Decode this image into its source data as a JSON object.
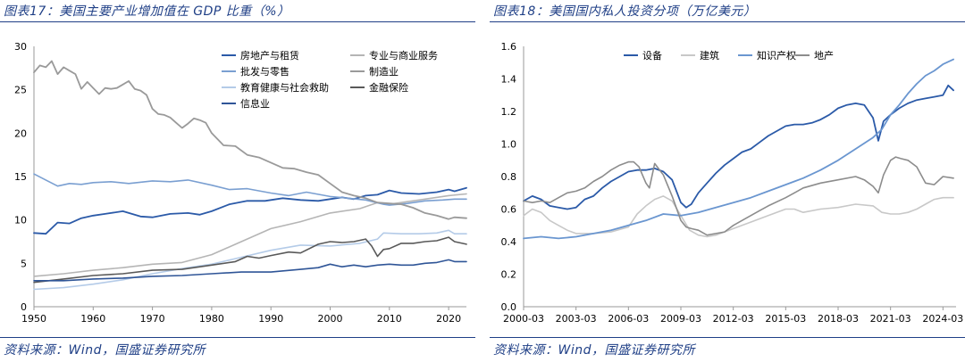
{
  "left": {
    "title": "图表17：美国主要产业增加值在 GDP 比重（%）",
    "source": "资料来源：Wind，国盛证券研究所",
    "chart_data": {
      "type": "line",
      "xlim": [
        1950,
        2023
      ],
      "ylim": [
        0,
        30
      ],
      "xticks": [
        1950,
        1960,
        1970,
        1980,
        1990,
        2000,
        2010,
        2020
      ],
      "yticks": [
        0,
        5,
        10,
        15,
        20,
        25,
        30
      ],
      "grid": false,
      "legend_position": "top-right",
      "series": [
        {
          "name": "房地产与租赁",
          "color": "#2b5aa8",
          "width": 1.8,
          "x": [
            1950,
            1952,
            1954,
            1956,
            1958,
            1960,
            1962,
            1965,
            1968,
            1970,
            1973,
            1976,
            1978,
            1980,
            1983,
            1986,
            1989,
            1992,
            1995,
            1998,
            2000,
            2002,
            2004,
            2006,
            2008,
            2010,
            2012,
            2015,
            2018,
            2020,
            2021,
            2023
          ],
          "y": [
            8.5,
            8.4,
            9.7,
            9.6,
            10.2,
            10.5,
            10.7,
            11.0,
            10.4,
            10.3,
            10.7,
            10.8,
            10.6,
            11.0,
            11.8,
            12.2,
            12.2,
            12.5,
            12.3,
            12.2,
            12.4,
            12.6,
            12.4,
            12.8,
            12.9,
            13.4,
            13.1,
            13.0,
            13.2,
            13.5,
            13.3,
            13.7
          ]
        },
        {
          "name": "专业与商业服务",
          "color": "#b5b5b5",
          "width": 1.6,
          "x": [
            1950,
            1955,
            1960,
            1965,
            1970,
            1975,
            1980,
            1985,
            1990,
            1995,
            2000,
            2005,
            2008,
            2010,
            2015,
            2020,
            2023
          ],
          "y": [
            3.5,
            3.8,
            4.2,
            4.5,
            4.9,
            5.1,
            6.0,
            7.5,
            9.0,
            9.8,
            10.8,
            11.3,
            12.0,
            11.8,
            12.3,
            12.8,
            13.0
          ]
        },
        {
          "name": "批发与零售",
          "color": "#7a9fd1",
          "width": 1.6,
          "x": [
            1950,
            1952,
            1954,
            1956,
            1958,
            1960,
            1963,
            1966,
            1970,
            1973,
            1976,
            1980,
            1983,
            1986,
            1990,
            1993,
            1996,
            2000,
            2003,
            2006,
            2009,
            2010,
            2013,
            2016,
            2019,
            2021,
            2023
          ],
          "y": [
            15.3,
            14.6,
            13.9,
            14.2,
            14.1,
            14.3,
            14.4,
            14.2,
            14.5,
            14.4,
            14.6,
            14.0,
            13.5,
            13.6,
            13.1,
            12.8,
            13.2,
            12.7,
            12.5,
            12.3,
            11.8,
            11.7,
            11.9,
            12.2,
            12.3,
            12.4,
            12.4
          ]
        },
        {
          "name": "制造业",
          "color": "#9a9a9a",
          "width": 1.8,
          "x": [
            1950,
            1951,
            1952,
            1953,
            1954,
            1955,
            1956,
            1957,
            1958,
            1959,
            1960,
            1961,
            1962,
            1963,
            1964,
            1965,
            1966,
            1967,
            1968,
            1969,
            1970,
            1971,
            1972,
            1973,
            1974,
            1975,
            1976,
            1977,
            1978,
            1979,
            1980,
            1982,
            1984,
            1986,
            1988,
            1990,
            1992,
            1994,
            1996,
            1998,
            2000,
            2002,
            2004,
            2006,
            2008,
            2010,
            2012,
            2014,
            2016,
            2018,
            2020,
            2021,
            2023
          ],
          "y": [
            27.0,
            27.8,
            27.6,
            28.3,
            26.8,
            27.6,
            27.2,
            26.8,
            25.1,
            25.9,
            25.2,
            24.5,
            25.2,
            25.1,
            25.2,
            25.6,
            26.0,
            25.1,
            24.9,
            24.4,
            22.8,
            22.2,
            22.1,
            21.8,
            21.2,
            20.6,
            21.1,
            21.7,
            21.5,
            21.2,
            20.0,
            18.6,
            18.5,
            17.5,
            17.2,
            16.6,
            16.0,
            15.9,
            15.5,
            15.2,
            14.2,
            13.2,
            12.8,
            12.5,
            12.0,
            11.9,
            11.8,
            11.4,
            10.8,
            10.5,
            10.1,
            10.3,
            10.2
          ]
        },
        {
          "name": "教育健康与社会救助",
          "color": "#b4cbe8",
          "width": 1.6,
          "x": [
            1950,
            1955,
            1960,
            1965,
            1970,
            1975,
            1980,
            1985,
            1990,
            1995,
            2000,
            2005,
            2008,
            2009,
            2012,
            2015,
            2018,
            2020,
            2021,
            2023
          ],
          "y": [
            2.0,
            2.2,
            2.6,
            3.1,
            3.8,
            4.4,
            4.9,
            5.7,
            6.5,
            7.1,
            7.0,
            7.3,
            7.8,
            8.5,
            8.4,
            8.4,
            8.5,
            8.8,
            8.4,
            8.4
          ]
        },
        {
          "name": "金融保险",
          "color": "#595959",
          "width": 1.6,
          "x": [
            1950,
            1955,
            1960,
            1965,
            1970,
            1975,
            1980,
            1984,
            1986,
            1988,
            1990,
            1993,
            1995,
            1998,
            2000,
            2002,
            2004,
            2006,
            2007,
            2008,
            2009,
            2010,
            2012,
            2014,
            2016,
            2018,
            2020,
            2021,
            2023
          ],
          "y": [
            2.8,
            3.2,
            3.6,
            3.8,
            4.2,
            4.3,
            4.8,
            5.2,
            5.8,
            5.6,
            5.9,
            6.3,
            6.2,
            7.2,
            7.5,
            7.4,
            7.5,
            7.8,
            7.0,
            5.8,
            6.6,
            6.7,
            7.3,
            7.3,
            7.5,
            7.6,
            8.0,
            7.5,
            7.2
          ]
        },
        {
          "name": "信息业",
          "color": "#2f5597",
          "width": 1.6,
          "x": [
            1950,
            1955,
            1960,
            1965,
            1970,
            1975,
            1980,
            1985,
            1990,
            1995,
            1998,
            2000,
            2002,
            2004,
            2006,
            2008,
            2010,
            2012,
            2014,
            2016,
            2018,
            2020,
            2021,
            2023
          ],
          "y": [
            3.0,
            3.0,
            3.2,
            3.3,
            3.5,
            3.6,
            3.8,
            4.0,
            4.0,
            4.3,
            4.5,
            4.9,
            4.6,
            4.8,
            4.6,
            4.8,
            4.9,
            4.8,
            4.8,
            5.0,
            5.1,
            5.4,
            5.2,
            5.2
          ]
        }
      ]
    }
  },
  "right": {
    "title": "图表18：美国国内私人投资分项（万亿美元）",
    "source": "资料来源：Wind，国盛证券研究所",
    "chart_data": {
      "type": "line",
      "x_unit": "year",
      "xlim": [
        2000.0,
        2024.75
      ],
      "ylim": [
        0,
        1.6
      ],
      "xtick_labels": [
        "2000-03",
        "2003-03",
        "2006-03",
        "2009-03",
        "2012-03",
        "2015-03",
        "2018-03",
        "2021-03",
        "2024-03"
      ],
      "xtick_values": [
        2000.0,
        2003.0,
        2006.0,
        2009.0,
        2012.0,
        2015.0,
        2018.0,
        2021.0,
        2024.0
      ],
      "yticks": [
        0,
        0.2,
        0.4,
        0.6,
        0.8,
        1.0,
        1.2,
        1.4,
        1.6
      ],
      "grid": false,
      "legend_position": "top-left",
      "series": [
        {
          "name": "设备",
          "color": "#2b5aa8",
          "width": 1.8,
          "x": [
            2000.0,
            2000.5,
            2001.0,
            2001.5,
            2002.0,
            2002.5,
            2003.0,
            2003.5,
            2004.0,
            2004.5,
            2005.0,
            2005.5,
            2006.0,
            2006.5,
            2007.0,
            2007.5,
            2008.0,
            2008.5,
            2009.0,
            2009.3,
            2009.6,
            2010.0,
            2010.5,
            2011.0,
            2011.5,
            2012.0,
            2012.5,
            2013.0,
            2013.5,
            2014.0,
            2014.5,
            2015.0,
            2015.5,
            2016.0,
            2016.5,
            2017.0,
            2017.5,
            2018.0,
            2018.5,
            2019.0,
            2019.5,
            2020.0,
            2020.3,
            2020.6,
            2021.0,
            2021.5,
            2022.0,
            2022.5,
            2023.0,
            2023.5,
            2024.0,
            2024.3,
            2024.6
          ],
          "y": [
            0.65,
            0.68,
            0.66,
            0.62,
            0.61,
            0.6,
            0.61,
            0.66,
            0.68,
            0.73,
            0.77,
            0.8,
            0.83,
            0.84,
            0.84,
            0.85,
            0.83,
            0.78,
            0.64,
            0.61,
            0.63,
            0.7,
            0.76,
            0.82,
            0.87,
            0.91,
            0.95,
            0.97,
            1.01,
            1.05,
            1.08,
            1.11,
            1.12,
            1.12,
            1.13,
            1.15,
            1.18,
            1.22,
            1.24,
            1.25,
            1.24,
            1.16,
            1.02,
            1.14,
            1.18,
            1.22,
            1.25,
            1.27,
            1.28,
            1.29,
            1.3,
            1.36,
            1.33
          ]
        },
        {
          "name": "建筑",
          "color": "#c8c8c8",
          "width": 1.6,
          "x": [
            2000.0,
            2000.5,
            2001.0,
            2001.5,
            2002.0,
            2002.5,
            2003.0,
            2003.5,
            2004.0,
            2005.0,
            2006.0,
            2006.5,
            2007.0,
            2007.5,
            2008.0,
            2008.5,
            2009.0,
            2009.5,
            2010.0,
            2010.5,
            2011.0,
            2011.5,
            2012.0,
            2012.5,
            2013.0,
            2014.0,
            2015.0,
            2015.5,
            2016.0,
            2017.0,
            2018.0,
            2019.0,
            2020.0,
            2020.5,
            2021.0,
            2021.5,
            2022.0,
            2022.5,
            2023.0,
            2023.5,
            2024.0,
            2024.6
          ],
          "y": [
            0.56,
            0.6,
            0.58,
            0.53,
            0.5,
            0.47,
            0.45,
            0.45,
            0.45,
            0.46,
            0.49,
            0.57,
            0.62,
            0.66,
            0.68,
            0.65,
            0.56,
            0.47,
            0.44,
            0.43,
            0.44,
            0.46,
            0.48,
            0.5,
            0.52,
            0.56,
            0.6,
            0.6,
            0.58,
            0.6,
            0.61,
            0.63,
            0.62,
            0.58,
            0.57,
            0.57,
            0.58,
            0.6,
            0.63,
            0.66,
            0.67,
            0.67
          ]
        },
        {
          "name": "知识产权",
          "color": "#6a96d0",
          "width": 1.8,
          "x": [
            2000.0,
            2001.0,
            2002.0,
            2003.0,
            2004.0,
            2005.0,
            2006.0,
            2007.0,
            2008.0,
            2009.0,
            2010.0,
            2011.0,
            2012.0,
            2013.0,
            2014.0,
            2015.0,
            2016.0,
            2017.0,
            2018.0,
            2019.0,
            2020.0,
            2020.5,
            2021.0,
            2021.5,
            2022.0,
            2022.5,
            2023.0,
            2023.5,
            2024.0,
            2024.6
          ],
          "y": [
            0.42,
            0.43,
            0.42,
            0.43,
            0.45,
            0.47,
            0.5,
            0.53,
            0.57,
            0.56,
            0.58,
            0.61,
            0.64,
            0.67,
            0.71,
            0.75,
            0.79,
            0.84,
            0.9,
            0.97,
            1.04,
            1.09,
            1.18,
            1.24,
            1.31,
            1.37,
            1.42,
            1.45,
            1.49,
            1.52
          ]
        },
        {
          "name": "地产",
          "color": "#8c8c8c",
          "width": 1.6,
          "x": [
            2000.0,
            2000.5,
            2001.0,
            2001.5,
            2002.0,
            2002.5,
            2003.0,
            2003.5,
            2004.0,
            2004.5,
            2005.0,
            2005.5,
            2006.0,
            2006.3,
            2006.6,
            2007.0,
            2007.2,
            2007.5,
            2008.0,
            2008.5,
            2009.0,
            2009.3,
            2009.6,
            2010.0,
            2010.5,
            2011.0,
            2011.5,
            2012.0,
            2012.5,
            2013.0,
            2013.5,
            2014.0,
            2015.0,
            2015.5,
            2016.0,
            2017.0,
            2018.0,
            2019.0,
            2019.5,
            2020.0,
            2020.3,
            2020.6,
            2021.0,
            2021.3,
            2021.6,
            2022.0,
            2022.5,
            2023.0,
            2023.5,
            2024.0,
            2024.6
          ],
          "y": [
            0.65,
            0.64,
            0.65,
            0.64,
            0.67,
            0.7,
            0.71,
            0.73,
            0.77,
            0.8,
            0.84,
            0.87,
            0.89,
            0.89,
            0.86,
            0.76,
            0.73,
            0.88,
            0.81,
            0.68,
            0.53,
            0.49,
            0.48,
            0.47,
            0.44,
            0.45,
            0.46,
            0.5,
            0.53,
            0.56,
            0.59,
            0.62,
            0.67,
            0.7,
            0.73,
            0.76,
            0.78,
            0.8,
            0.78,
            0.74,
            0.7,
            0.81,
            0.9,
            0.92,
            0.91,
            0.9,
            0.86,
            0.76,
            0.75,
            0.8,
            0.79
          ]
        }
      ]
    }
  }
}
